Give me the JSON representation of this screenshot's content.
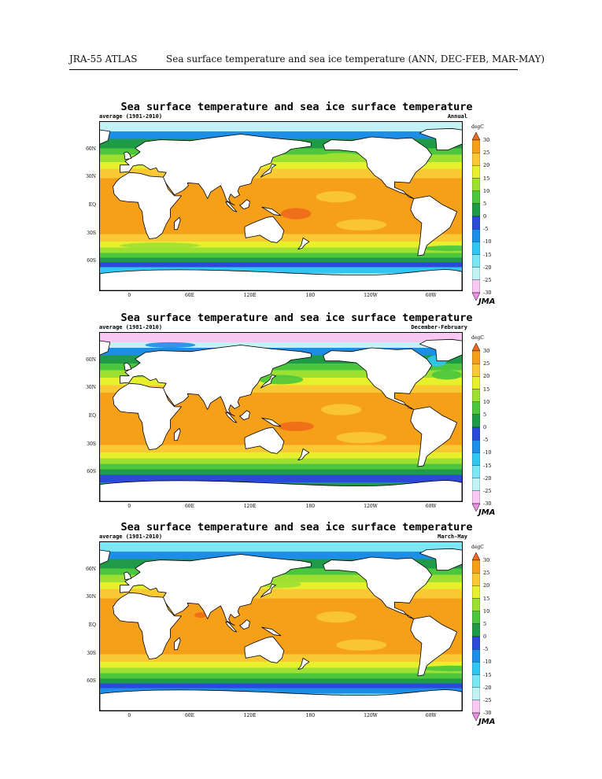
{
  "header": {
    "atlas": "JRA-55 ATLAS",
    "topic": "Sea surface temperature and sea ice temperature (ANN, DEC-FEB, MAR-MAY)"
  },
  "map_common": {
    "title": "Sea surface temperature and sea ice surface temperature",
    "period": "average (1981-2010)",
    "unit": "degC",
    "logo": "JMA",
    "lat_labels": [
      "60N",
      "30N",
      "EQ",
      "30S",
      "60S"
    ],
    "lon_labels": [
      "0",
      "60E",
      "120E",
      "180",
      "120W",
      "60W"
    ],
    "colorbar_labels": [
      "30",
      "25",
      "20",
      "15",
      "10",
      "5",
      "0",
      "-5",
      "-10",
      "-15",
      "-20",
      "-25",
      "-30"
    ],
    "colors": {
      "land": "#ffffff",
      "above_30": "#f06a1a",
      "from_25_30": "#f6a01a",
      "from_20_25": "#f9c933",
      "from_15_20": "#e6f02c",
      "from_10_15": "#9de032",
      "from_5_10": "#4cc63c",
      "from_0_5": "#1f9a46",
      "from_m5_0": "#2b48d8",
      "from_m10_m5": "#1d8ee8",
      "from_m15_m10": "#31c6f2",
      "from_m20_m15": "#7be7f5",
      "from_m25_m20": "#c3f2f6",
      "from_m30_m25": "#f8c8f2",
      "below_m30": "#ef8ee6"
    }
  },
  "panels": [
    {
      "season": "Annual"
    },
    {
      "season": "December-February"
    },
    {
      "season": "March-May"
    }
  ]
}
